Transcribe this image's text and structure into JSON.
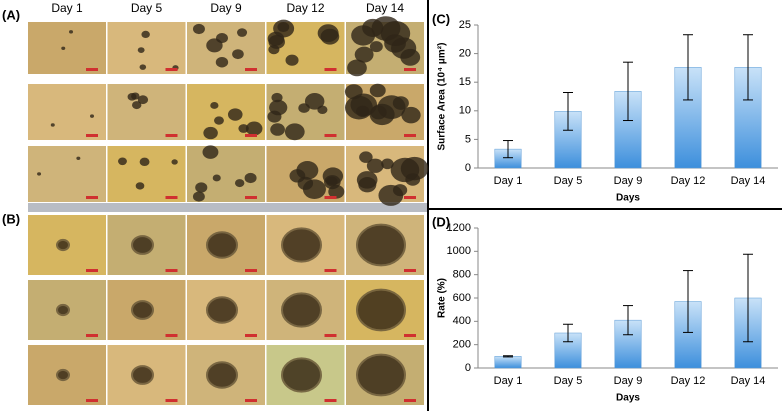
{
  "panels": {
    "A": "(A)",
    "B": "(B)"
  },
  "image_columns": [
    "Day 1",
    "Day 5",
    "Day 9",
    "Day 12",
    "Day 14"
  ],
  "chart_data": [
    {
      "type": "bar",
      "panel_label": "(C)",
      "ylabel": "Surface Area (10⁴ μm²)",
      "xlabel": "Days",
      "categories": [
        "Day 1",
        "Day 5",
        "Day 9",
        "Day 12",
        "Day 14"
      ],
      "values": [
        3.3,
        9.9,
        13.4,
        17.6,
        17.6
      ],
      "errors": [
        1.5,
        3.3,
        5.1,
        5.7,
        5.7
      ],
      "ylim": [
        0,
        25
      ],
      "yticks": [
        0,
        5,
        10,
        15,
        20,
        25
      ],
      "color": "#5b9bd5"
    },
    {
      "type": "bar",
      "panel_label": "(D)",
      "ylabel": "Rate (%)",
      "xlabel": "Days",
      "categories": [
        "Day 1",
        "Day 5",
        "Day 9",
        "Day 12",
        "Day 14"
      ],
      "values": [
        100,
        300,
        410,
        570,
        600
      ],
      "errors": [
        5,
        75,
        125,
        265,
        375
      ],
      "ylim": [
        0,
        1200
      ],
      "yticks": [
        0,
        200,
        400,
        600,
        800,
        1000,
        1200
      ],
      "color": "#5b9bd5"
    }
  ]
}
